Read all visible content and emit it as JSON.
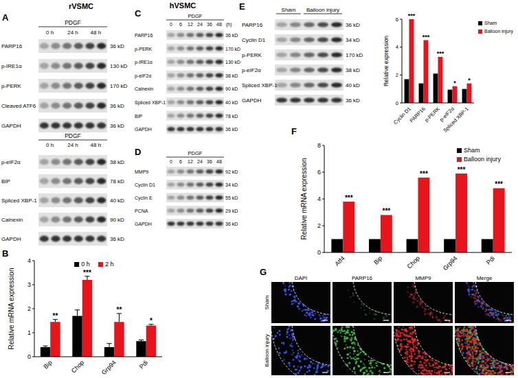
{
  "titles": [
    "rVSMC",
    "hVSMC"
  ],
  "panel_labels": [
    "A",
    "B",
    "C",
    "D",
    "E",
    "F",
    "G"
  ],
  "blots": [
    {
      "header": "PDGF",
      "lane_groups": [
        {
          "label": "0 h",
          "lanes": 2
        },
        {
          "label": "24 h",
          "lanes": 2
        },
        {
          "label": "48 h",
          "lanes": 2
        }
      ],
      "rows": [
        {
          "label": "PARP16",
          "kd": "36 kD"
        },
        {
          "label": "p-IRE1α",
          "kd": "130 kD"
        },
        {
          "label": "p-PERK",
          "kd": "170 kD"
        },
        {
          "label": "Cleaved ATF6",
          "kd": "36 kD"
        },
        {
          "label": "GAPDH",
          "kd": "36 kD"
        }
      ]
    },
    {
      "header": "PDGF",
      "lane_groups": [
        {
          "label": "0 h",
          "lanes": 2
        },
        {
          "label": "24 h",
          "lanes": 2
        },
        {
          "label": "48 h",
          "lanes": 2
        }
      ],
      "rows": [
        {
          "label": "p-eIF2α",
          "kd": "38 kD"
        },
        {
          "label": "BIP",
          "kd": "78 kD"
        },
        {
          "label": "Spliced XBP-1",
          "kd": "40 kD"
        },
        {
          "label": "Calnexin",
          "kd": "90 kD"
        },
        {
          "label": "GAPDH",
          "kd": "36 kD"
        }
      ]
    },
    {
      "header": "PDGF",
      "unit": "(h)",
      "lane_groups": [
        {
          "label": "0",
          "lanes": 1
        },
        {
          "label": "6",
          "lanes": 1
        },
        {
          "label": "12",
          "lanes": 1
        },
        {
          "label": "24",
          "lanes": 1
        },
        {
          "label": "36",
          "lanes": 1
        },
        {
          "label": "48",
          "lanes": 1
        }
      ],
      "rows": [
        {
          "label": "PARP16",
          "kd": "36 kD"
        },
        {
          "label": "p-PERK",
          "kd": "170 kD"
        },
        {
          "label": "p-IRE1α",
          "kd": "130 kD"
        },
        {
          "label": "p-eIF2α",
          "kd": "38 kD"
        },
        {
          "label": "Calnexin",
          "kd": "90 kD"
        },
        {
          "label": "Spliced XBP-1",
          "kd": "40 kD"
        },
        {
          "label": "BIP",
          "kd": "78 kD"
        },
        {
          "label": "GAPDH",
          "kd": "36 kD"
        }
      ]
    },
    {
      "header": "PDGF",
      "lane_groups": [
        {
          "label": "0",
          "lanes": 1
        },
        {
          "label": "6",
          "lanes": 1
        },
        {
          "label": "12",
          "lanes": 1
        },
        {
          "label": "24",
          "lanes": 1
        },
        {
          "label": "36",
          "lanes": 1
        },
        {
          "label": "48",
          "lanes": 1
        }
      ],
      "rows": [
        {
          "label": "MMP9",
          "kd": "92 kD"
        },
        {
          "label": "Cyclin D1",
          "kd": "34 kD"
        },
        {
          "label": "Cyclin E",
          "kd": "55 kD"
        },
        {
          "label": "PCNA",
          "kd": "29 kD"
        },
        {
          "label": "GAPDH",
          "kd": "36 kD"
        }
      ]
    },
    {
      "lane_groups": [
        {
          "label": "Sham",
          "lanes": 2
        },
        {
          "label": "Balloon injury",
          "lanes": 3
        }
      ],
      "rows": [
        {
          "label": "PARP16",
          "kd": "36 kD"
        },
        {
          "label": "Cyclin D1",
          "kd": "34 kD"
        },
        {
          "label": "p-PERK",
          "kd": "170 kD"
        },
        {
          "label": "p-eIF2α",
          "kd": "38 kD"
        },
        {
          "label": "Spliced XBP-1",
          "kd": "40 kD"
        },
        {
          "label": "GAPDH",
          "kd": "36 kD"
        }
      ]
    }
  ],
  "chart_data": [
    {
      "type": "bar",
      "categories": [
        "Bip",
        "Chop",
        "Grp94",
        "Pdi"
      ],
      "series": [
        {
          "name": "0 h",
          "color": "#000000",
          "values": [
            0.4,
            1.7,
            0.4,
            0.65
          ],
          "errors": [
            0.05,
            0.25,
            0.15,
            0.05
          ]
        },
        {
          "name": "2 h",
          "color": "#e8141c",
          "values": [
            1.45,
            3.2,
            1.45,
            1.3
          ],
          "errors": [
            0.1,
            0.15,
            0.35,
            0.05
          ]
        }
      ],
      "ylabel": "Relative mRNA expression",
      "ylim": [
        0,
        4
      ],
      "yticks": [
        0,
        1,
        2,
        3,
        4
      ],
      "legend": "upper center",
      "annotations": [
        "**",
        "***",
        "**",
        "*"
      ]
    },
    {
      "type": "bar",
      "categories": [
        "Cyclin D1",
        "PARP16",
        "p-PERK",
        "p-eIF2α",
        "Spliced XBP-1"
      ],
      "series": [
        {
          "name": "Sham",
          "color": "#000000",
          "values": [
            1.7,
            1.4,
            2.1,
            0.95,
            1.0
          ]
        },
        {
          "name": "Balloon injury",
          "color": "#e8141c",
          "values": [
            6.0,
            4.5,
            3.3,
            1.2,
            1.4
          ]
        }
      ],
      "ylabel": "Relative expression",
      "ylim": [
        0,
        6
      ],
      "yticks": [
        0,
        2,
        4,
        6
      ],
      "legend": "right",
      "annotations": [
        "***",
        "***",
        "***",
        "*",
        "*"
      ]
    },
    {
      "type": "bar",
      "categories": [
        "Atf4",
        "Bip",
        "Chop",
        "Grp94",
        "Pdi"
      ],
      "series": [
        {
          "name": "Sham",
          "color": "#000000",
          "values": [
            1,
            1,
            1,
            1,
            1
          ]
        },
        {
          "name": "Balloon injury",
          "color": "#e8141c",
          "values": [
            3.8,
            2.8,
            5.6,
            5.9,
            4.8
          ]
        }
      ],
      "ylabel": "Relative mRNA expression",
      "ylim": [
        0,
        8
      ],
      "yticks": [
        0,
        2,
        4,
        6,
        8
      ],
      "legend": "upper right",
      "annotations": [
        "***",
        "***",
        "***",
        "***",
        "***"
      ]
    }
  ],
  "images": {
    "columns": [
      "DAPI",
      "PARP16",
      "MMP9",
      "Merge"
    ],
    "rows": [
      "Sham",
      "Balloon injury"
    ]
  }
}
